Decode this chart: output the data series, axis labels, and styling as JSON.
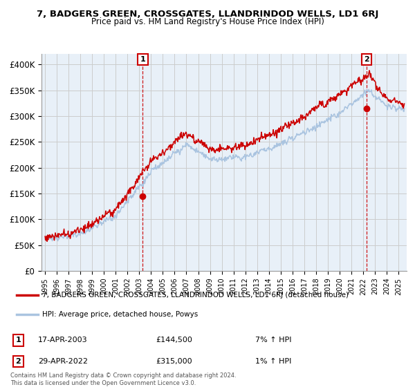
{
  "title": "7, BADGERS GREEN, CROSSGATES, LLANDRINDOD WELLS, LD1 6RJ",
  "subtitle": "Price paid vs. HM Land Registry's House Price Index (HPI)",
  "ylim": [
    0,
    420000
  ],
  "yticks": [
    0,
    50000,
    100000,
    150000,
    200000,
    250000,
    300000,
    350000,
    400000
  ],
  "ytick_labels": [
    "£0",
    "£50K",
    "£100K",
    "£150K",
    "£200K",
    "£250K",
    "£300K",
    "£350K",
    "£400K"
  ],
  "hpi_color": "#aac4e0",
  "price_color": "#cc0000",
  "bg_chart_color": "#e8f0f8",
  "sale1_x": 2003.29,
  "sale1_price": 144500,
  "sale2_x": 2022.29,
  "sale2_price": 315000,
  "legend_line1": "7, BADGERS GREEN, CROSSGATES, LLANDRINDOD WELLS, LD1 6RJ (detached house)",
  "legend_line2": "HPI: Average price, detached house, Powys",
  "sale1_date": "17-APR-2003",
  "sale1_price_str": "£144,500",
  "sale1_hpi": "7% ↑ HPI",
  "sale2_date": "29-APR-2022",
  "sale2_price_str": "£315,000",
  "sale2_hpi": "1% ↑ HPI",
  "footer_line1": "Contains HM Land Registry data © Crown copyright and database right 2024.",
  "footer_line2": "This data is licensed under the Open Government Licence v3.0.",
  "background_color": "#ffffff",
  "grid_color": "#cccccc"
}
